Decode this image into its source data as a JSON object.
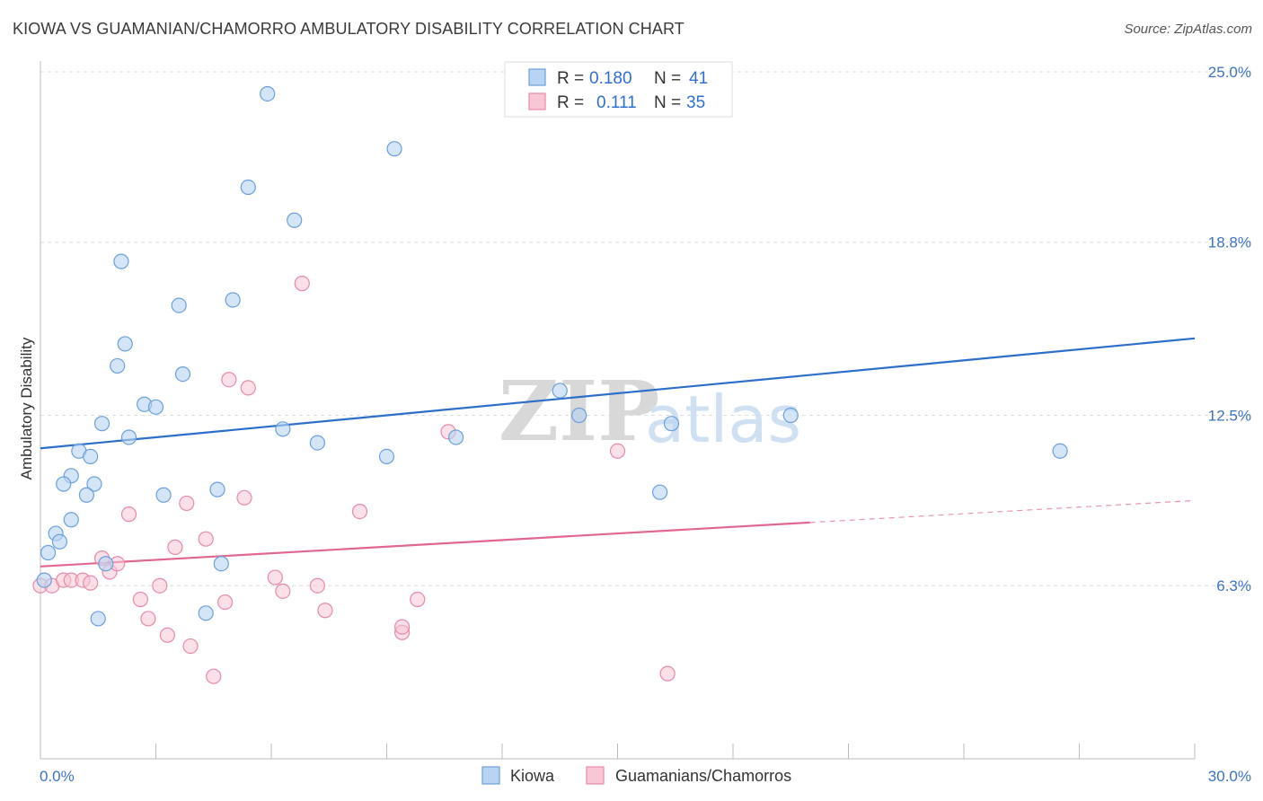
{
  "title": "KIOWA VS GUAMANIAN/CHAMORRO AMBULATORY DISABILITY CORRELATION CHART",
  "source": "Source: ZipAtlas.com",
  "colors": {
    "kiowa_fill": "#b9d3f3",
    "kiowa_stroke": "#6a9fdb",
    "kiowa_line": "#2c6fca",
    "guam_fill": "#f8c6d5",
    "guam_stroke": "#e68aa8",
    "guam_line": "#e06890",
    "tick_text": "#3b73c4",
    "grid": "#dddddd"
  },
  "legend": {
    "row1": {
      "r_label": "R =",
      "r_value": "0.180",
      "n_label": "N =",
      "n_value": "41"
    },
    "row2": {
      "r_label": "R =",
      "r_value": "0.111",
      "n_label": "N =",
      "n_value": "35"
    }
  },
  "bottom_legend": {
    "series1": "Kiowa",
    "series2": "Guamanians/Chamorros"
  },
  "watermark": {
    "zip": "ZIP",
    "atlas": "atlas"
  },
  "chart_data": {
    "type": "scatter",
    "title": "KIOWA VS GUAMANIAN/CHAMORRO AMBULATORY DISABILITY CORRELATION CHART",
    "xlabel": "",
    "ylabel": "Ambulatory Disability",
    "xlim": [
      0,
      30
    ],
    "ylim": [
      0,
      25.0
    ],
    "x_tick_labels": [
      "0.0%",
      "30.0%"
    ],
    "y_ticks": [
      6.3,
      12.5,
      18.8,
      25.0
    ],
    "y_tick_labels": [
      "6.3%",
      "12.5%",
      "18.8%",
      "25.0%"
    ],
    "grid": true,
    "legend_position": "top-center",
    "series": [
      {
        "name": "Kiowa",
        "r": 0.18,
        "n": 41,
        "trend": {
          "x": [
            0,
            30
          ],
          "y": [
            11.3,
            15.3
          ]
        },
        "points": [
          [
            5.9,
            24.2
          ],
          [
            9.2,
            22.2
          ],
          [
            5.4,
            20.8
          ],
          [
            6.6,
            19.6
          ],
          [
            2.1,
            18.1
          ],
          [
            3.6,
            16.5
          ],
          [
            5.0,
            16.7
          ],
          [
            2.2,
            15.1
          ],
          [
            2.0,
            14.3
          ],
          [
            3.7,
            14.0
          ],
          [
            2.7,
            12.9
          ],
          [
            3.0,
            12.8
          ],
          [
            13.5,
            13.4
          ],
          [
            14.0,
            12.5
          ],
          [
            19.5,
            12.5
          ],
          [
            1.6,
            12.2
          ],
          [
            2.3,
            11.7
          ],
          [
            6.3,
            12.0
          ],
          [
            7.2,
            11.5
          ],
          [
            10.8,
            11.7
          ],
          [
            16.4,
            12.2
          ],
          [
            1.0,
            11.2
          ],
          [
            1.3,
            11.0
          ],
          [
            9.0,
            11.0
          ],
          [
            26.5,
            11.2
          ],
          [
            0.8,
            10.3
          ],
          [
            0.6,
            10.0
          ],
          [
            1.4,
            10.0
          ],
          [
            4.6,
            9.8
          ],
          [
            1.2,
            9.6
          ],
          [
            3.2,
            9.6
          ],
          [
            16.1,
            9.7
          ],
          [
            0.8,
            8.7
          ],
          [
            0.4,
            8.2
          ],
          [
            0.5,
            7.9
          ],
          [
            0.2,
            7.5
          ],
          [
            1.7,
            7.1
          ],
          [
            4.7,
            7.1
          ],
          [
            0.1,
            6.5
          ],
          [
            1.5,
            5.1
          ],
          [
            4.3,
            5.3
          ]
        ]
      },
      {
        "name": "Guamanians/Chamorros",
        "r": 0.111,
        "n": 35,
        "trend": {
          "x": [
            0,
            20
          ],
          "y": [
            7.0,
            8.6
          ],
          "dashed_to": {
            "x": 30,
            "y": 9.4
          }
        },
        "points": [
          [
            0.0,
            6.3
          ],
          [
            0.3,
            6.3
          ],
          [
            0.6,
            6.5
          ],
          [
            0.8,
            6.5
          ],
          [
            1.1,
            6.5
          ],
          [
            1.3,
            6.4
          ],
          [
            1.6,
            7.3
          ],
          [
            1.8,
            6.8
          ],
          [
            2.0,
            7.1
          ],
          [
            2.3,
            8.9
          ],
          [
            2.6,
            5.8
          ],
          [
            2.8,
            5.1
          ],
          [
            3.1,
            6.3
          ],
          [
            3.3,
            4.5
          ],
          [
            3.5,
            7.7
          ],
          [
            3.8,
            9.3
          ],
          [
            3.9,
            4.1
          ],
          [
            4.3,
            8.0
          ],
          [
            4.5,
            3.0
          ],
          [
            4.8,
            5.7
          ],
          [
            4.9,
            13.8
          ],
          [
            5.3,
            9.5
          ],
          [
            5.4,
            13.5
          ],
          [
            6.1,
            6.6
          ],
          [
            6.3,
            6.1
          ],
          [
            6.8,
            17.3
          ],
          [
            7.2,
            6.3
          ],
          [
            7.4,
            5.4
          ],
          [
            8.3,
            9.0
          ],
          [
            9.4,
            4.6
          ],
          [
            9.4,
            4.8
          ],
          [
            9.8,
            5.8
          ],
          [
            10.6,
            11.9
          ],
          [
            15.0,
            11.2
          ],
          [
            16.3,
            3.1
          ]
        ]
      }
    ]
  }
}
